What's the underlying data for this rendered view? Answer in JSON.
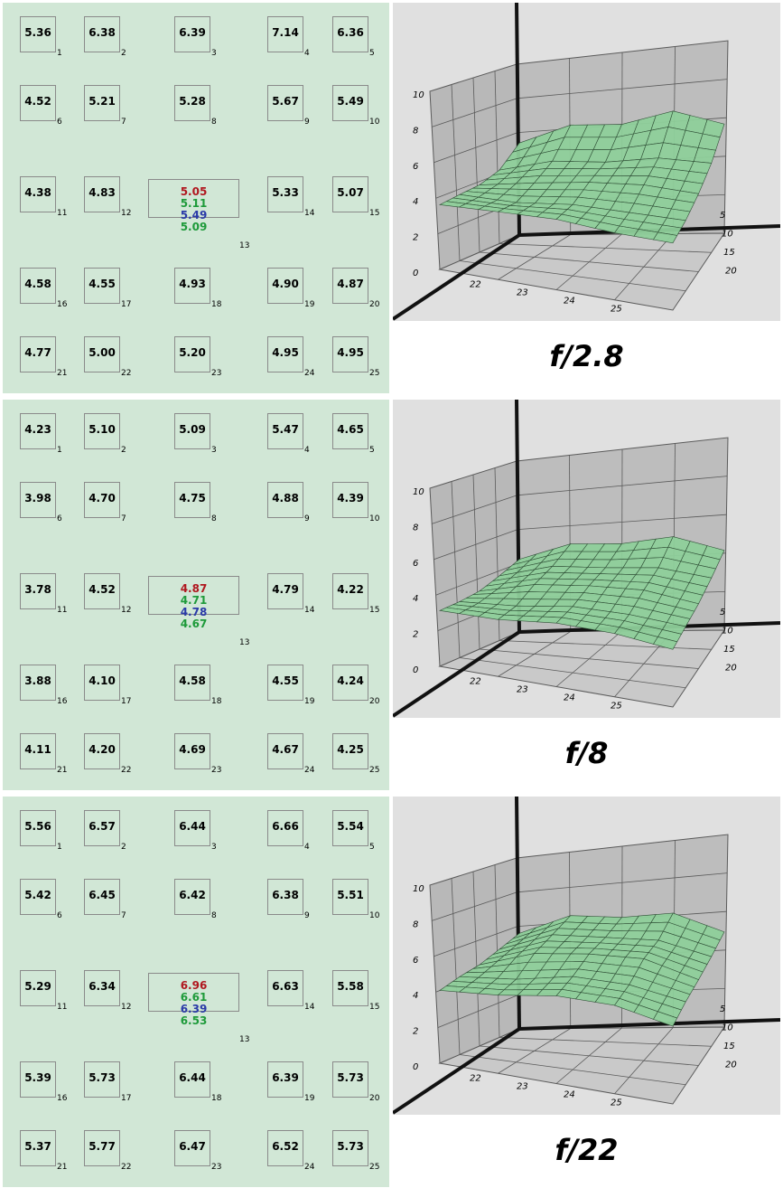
{
  "colors": {
    "grid_background": "#d1e7d6",
    "surface_fill": "#8ecf9a",
    "surface_stroke": "#2f4f36",
    "center_red": "#b0171f",
    "center_green": "#1e9a3a",
    "center_blue": "#2a3aa8"
  },
  "chart_data": [
    {
      "type": "heatmap",
      "title": "f/2.8",
      "cells": [
        {
          "label": "1",
          "value": "5.36"
        },
        {
          "label": "2",
          "value": "6.38"
        },
        {
          "label": "3",
          "value": "6.39"
        },
        {
          "label": "4",
          "value": "7.14"
        },
        {
          "label": "5",
          "value": "6.36"
        },
        {
          "label": "6",
          "value": "4.52"
        },
        {
          "label": "7",
          "value": "5.21"
        },
        {
          "label": "8",
          "value": "5.28"
        },
        {
          "label": "9",
          "value": "5.67"
        },
        {
          "label": "10",
          "value": "5.49"
        },
        {
          "label": "11",
          "value": "4.38"
        },
        {
          "label": "12",
          "value": "4.83"
        },
        {
          "label": "13",
          "values": [
            "5.05",
            "5.11",
            "5.49",
            "5.09"
          ]
        },
        {
          "label": "14",
          "value": "5.33"
        },
        {
          "label": "15",
          "value": "5.07"
        },
        {
          "label": "16",
          "value": "4.58"
        },
        {
          "label": "17",
          "value": "4.55"
        },
        {
          "label": "18",
          "value": "4.93"
        },
        {
          "label": "19",
          "value": "4.90"
        },
        {
          "label": "20",
          "value": "4.87"
        },
        {
          "label": "21",
          "value": "4.77"
        },
        {
          "label": "22",
          "value": "5.00"
        },
        {
          "label": "23",
          "value": "5.20"
        },
        {
          "label": "24",
          "value": "4.95"
        },
        {
          "label": "25",
          "value": "4.95"
        }
      ],
      "surface": {
        "z_ticks": [
          "0",
          "2",
          "4",
          "6",
          "8",
          "10"
        ],
        "x_ticks": [
          "22",
          "23",
          "24",
          "25"
        ],
        "y_ticks": [
          "5",
          "10",
          "15",
          "20"
        ],
        "zlim": [
          0,
          10
        ]
      }
    },
    {
      "type": "heatmap",
      "title": "f/8",
      "cells": [
        {
          "label": "1",
          "value": "4.23"
        },
        {
          "label": "2",
          "value": "5.10"
        },
        {
          "label": "3",
          "value": "5.09"
        },
        {
          "label": "4",
          "value": "5.47"
        },
        {
          "label": "5",
          "value": "4.65"
        },
        {
          "label": "6",
          "value": "3.98"
        },
        {
          "label": "7",
          "value": "4.70"
        },
        {
          "label": "8",
          "value": "4.75"
        },
        {
          "label": "9",
          "value": "4.88"
        },
        {
          "label": "10",
          "value": "4.39"
        },
        {
          "label": "11",
          "value": "3.78"
        },
        {
          "label": "12",
          "value": "4.52"
        },
        {
          "label": "13",
          "values": [
            "4.87",
            "4.71",
            "4.78",
            "4.67"
          ]
        },
        {
          "label": "14",
          "value": "4.79"
        },
        {
          "label": "15",
          "value": "4.22"
        },
        {
          "label": "16",
          "value": "3.88"
        },
        {
          "label": "17",
          "value": "4.10"
        },
        {
          "label": "18",
          "value": "4.58"
        },
        {
          "label": "19",
          "value": "4.55"
        },
        {
          "label": "20",
          "value": "4.24"
        },
        {
          "label": "21",
          "value": "4.11"
        },
        {
          "label": "22",
          "value": "4.20"
        },
        {
          "label": "23",
          "value": "4.69"
        },
        {
          "label": "24",
          "value": "4.67"
        },
        {
          "label": "25",
          "value": "4.25"
        }
      ],
      "surface": {
        "z_ticks": [
          "0",
          "2",
          "4",
          "6",
          "8",
          "10"
        ],
        "x_ticks": [
          "22",
          "23",
          "24",
          "25"
        ],
        "y_ticks": [
          "5",
          "10",
          "15",
          "20"
        ],
        "zlim": [
          0,
          10
        ]
      }
    },
    {
      "type": "heatmap",
      "title": "f/22",
      "cells": [
        {
          "label": "1",
          "value": "5.56"
        },
        {
          "label": "2",
          "value": "6.57"
        },
        {
          "label": "3",
          "value": "6.44"
        },
        {
          "label": "4",
          "value": "6.66"
        },
        {
          "label": "5",
          "value": "5.54"
        },
        {
          "label": "6",
          "value": "5.42"
        },
        {
          "label": "7",
          "value": "6.45"
        },
        {
          "label": "8",
          "value": "6.42"
        },
        {
          "label": "9",
          "value": "6.38"
        },
        {
          "label": "10",
          "value": "5.51"
        },
        {
          "label": "11",
          "value": "5.29"
        },
        {
          "label": "12",
          "value": "6.34"
        },
        {
          "label": "13",
          "values": [
            "6.96",
            "6.61",
            "6.39",
            "6.53"
          ]
        },
        {
          "label": "14",
          "value": "6.63"
        },
        {
          "label": "15",
          "value": "5.58"
        },
        {
          "label": "16",
          "value": "5.39"
        },
        {
          "label": "17",
          "value": "5.73"
        },
        {
          "label": "18",
          "value": "6.44"
        },
        {
          "label": "19",
          "value": "6.39"
        },
        {
          "label": "20",
          "value": "5.73"
        },
        {
          "label": "21",
          "value": "5.37"
        },
        {
          "label": "22",
          "value": "5.77"
        },
        {
          "label": "23",
          "value": "6.47"
        },
        {
          "label": "24",
          "value": "6.52"
        },
        {
          "label": "25",
          "value": "5.73"
        }
      ],
      "surface": {
        "z_ticks": [
          "0",
          "2",
          "4",
          "6",
          "8",
          "10"
        ],
        "x_ticks": [
          "22",
          "23",
          "24",
          "25"
        ],
        "y_ticks": [
          "5",
          "10",
          "15",
          "20"
        ],
        "zlim": [
          0,
          10
        ]
      }
    }
  ]
}
